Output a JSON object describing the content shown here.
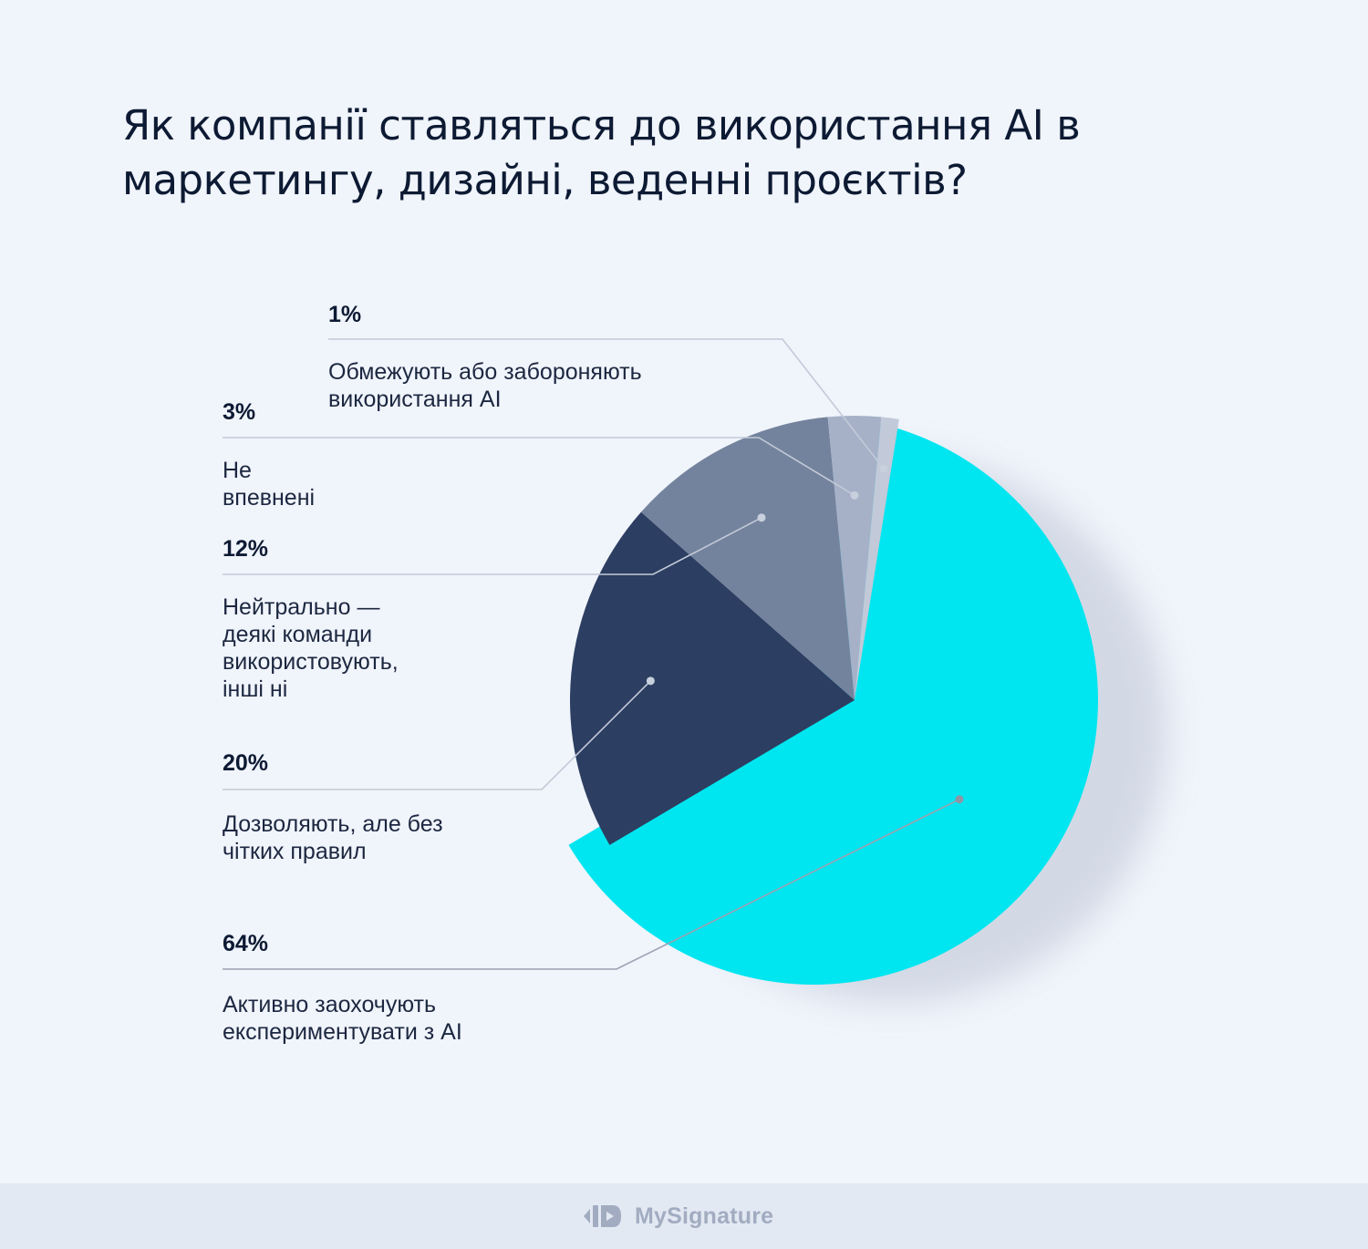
{
  "title": "Як компанії ставляться до використання AI в маркетингу, дизайні, веденні проєктів?",
  "brand": {
    "name": "MySignature",
    "icon": "mysignature-logo-icon"
  },
  "colors": {
    "background": "#f0f4fb",
    "footer": "#e3e9f3",
    "brand": "#a2acc1"
  },
  "chart_data": {
    "type": "pie",
    "title": "Як компанії ставляться до використання AI в маркетингу, дизайні, веденні проєктів?",
    "slices": [
      {
        "value": 64,
        "pct_label": "64%",
        "label_lines": [
          "Активно заохочують",
          "експериментувати з AI"
        ],
        "color": "#00e6f0"
      },
      {
        "value": 20,
        "pct_label": "20%",
        "label_lines": [
          "Дозволяють, але без",
          "чітких правил"
        ],
        "color": "#2c3e61"
      },
      {
        "value": 12,
        "pct_label": "12%",
        "label_lines": [
          "Нейтрально —",
          "деякі команди",
          "використовують,",
          "інші ні"
        ],
        "color": "#74839d"
      },
      {
        "value": 3,
        "pct_label": "3%",
        "label_lines": [
          "Не",
          "впевнені"
        ],
        "color": "#a6b1c8"
      },
      {
        "value": 1,
        "pct_label": "1%",
        "label_lines": [
          "Обмежують або забороняють",
          "використання AI"
        ],
        "color": "#c2c9d8"
      }
    ]
  }
}
